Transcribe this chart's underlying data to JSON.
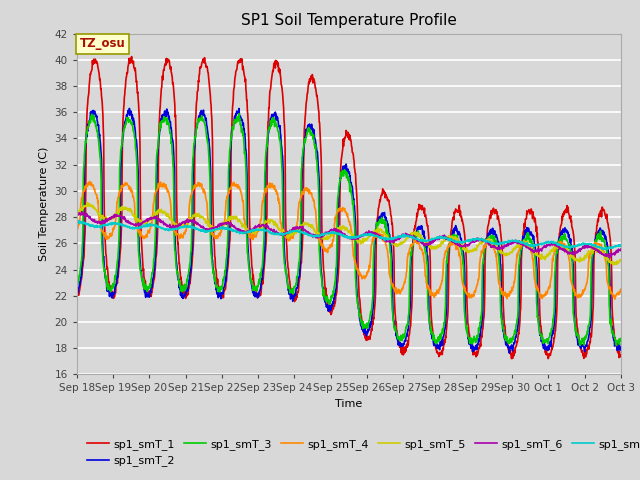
{
  "title": "SP1 Soil Temperature Profile",
  "xlabel": "Time",
  "ylabel": "Soil Temperature (C)",
  "ylim": [
    16,
    42
  ],
  "yticks": [
    16,
    18,
    20,
    22,
    24,
    26,
    28,
    30,
    32,
    34,
    36,
    38,
    40,
    42
  ],
  "bg_color": "#d8d8d8",
  "plot_bg_color": "#d8d8d8",
  "annotation_text": "TZ_osu",
  "annotation_color": "#aa1100",
  "annotation_bg": "#ffffcc",
  "annotation_border": "#999900",
  "line_colors": {
    "sp1_smT_1": "#dd0000",
    "sp1_smT_2": "#0000dd",
    "sp1_smT_3": "#00cc00",
    "sp1_smT_4": "#ff8800",
    "sp1_smT_5": "#cccc00",
    "sp1_smT_6": "#aa00aa",
    "sp1_smT_7": "#00cccc"
  },
  "xtick_labels": [
    "Sep 18",
    "Sep 19",
    "Sep 20",
    "Sep 21",
    "Sep 22",
    "Sep 23",
    "Sep 24",
    "Sep 25",
    "Sep 26",
    "Sep 27",
    "Sep 28",
    "Sep 29",
    "Sep 30",
    "Oct 1",
    "Oct 2",
    "Oct 3"
  ],
  "n_points": 1500
}
